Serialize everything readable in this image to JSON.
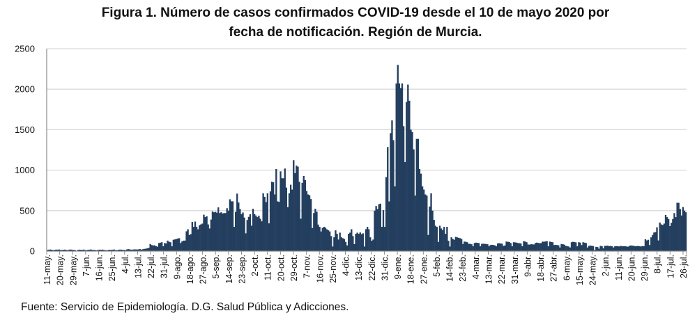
{
  "chart_data": {
    "type": "bar",
    "title_line1": "Figura 1. Número de casos confirmados COVID-19 desde el 10 de mayo 2020 por",
    "title_line2": "fecha de notificación. Región de Murcia.",
    "source": "Fuente: Servicio de Epidemiología. D.G. Salud Pública y Adicciones.",
    "xlabel": "",
    "ylabel": "",
    "ylim": [
      0,
      2500
    ],
    "yticks": [
      "0",
      "500",
      "1000",
      "1500",
      "2000",
      "2500"
    ],
    "grid": true,
    "bar_color": "#233e5e",
    "grid_color": "#d9d9d9",
    "x_start": "2020-05-10",
    "x_end": "2021-07-26",
    "xtick_interval_days": 9,
    "xtick_labels": [
      "11-may.",
      "20-may.",
      "29-may.",
      "7-jun.",
      "16-jun.",
      "25-jun.",
      "4-jul.",
      "13-jul.",
      "22-jul.",
      "31-jul.",
      "9-ago.",
      "18-ago.",
      "27-ago.",
      "5-sep.",
      "14-sep.",
      "23-sep.",
      "2-oct.",
      "11-oct.",
      "20-oct.",
      "29-oct.",
      "7-nov.",
      "16-nov.",
      "25-nov.",
      "4-dic.",
      "13-dic.",
      "22-dic.",
      "31-dic.",
      "9-ene.",
      "18-ene.",
      "27-ene.",
      "5-feb.",
      "14-feb.",
      "23-feb.",
      "4-mar.",
      "13-mar.",
      "22-mar.",
      "31-mar.",
      "9-abr.",
      "18-abr.",
      "27-abr.",
      "6-may.",
      "15-may.",
      "24-may.",
      "2-jun.",
      "11-jun.",
      "20-jun.",
      "29-jun.",
      "8-jul.",
      "17-jul.",
      "26-jul."
    ],
    "values": [
      15,
      18,
      20,
      17,
      12,
      16,
      19,
      18,
      20,
      16,
      14,
      17,
      19,
      15,
      12,
      18,
      20,
      17,
      16,
      14,
      5,
      15,
      18,
      17,
      16,
      19,
      14,
      12,
      17,
      18,
      20,
      16,
      15,
      14,
      11,
      16,
      18,
      17,
      19,
      15,
      13,
      10,
      15,
      17,
      16,
      18,
      20,
      14,
      12,
      17,
      19,
      18,
      16,
      15,
      14,
      22,
      25,
      20,
      18,
      19,
      22,
      21,
      20,
      22,
      25,
      18,
      24,
      28,
      30,
      35,
      40,
      88,
      75,
      70,
      72,
      60,
      55,
      100,
      105,
      110,
      60,
      100,
      95,
      130,
      115,
      110,
      60,
      140,
      145,
      150,
      155,
      160,
      100,
      120,
      130,
      130,
      245,
      270,
      200,
      210,
      360,
      300,
      365,
      300,
      270,
      320,
      330,
      340,
      450,
      420,
      430,
      330,
      280,
      390,
      490,
      480,
      485,
      475,
      540,
      470,
      480,
      465,
      470,
      470,
      530,
      500,
      640,
      615,
      615,
      300,
      485,
      710,
      600,
      520,
      457,
      477,
      415,
      220,
      385,
      423,
      457,
      314,
      523,
      457,
      440,
      420,
      437,
      400,
      368,
      714,
      671,
      606,
      714,
      343,
      737,
      857,
      850,
      700,
      1014,
      614,
      608,
      985,
      900,
      900,
      1020,
      785,
      543,
      714,
      820,
      760,
      1123,
      963,
      1057,
      1043,
      857,
      400,
      843,
      928,
      877,
      743,
      700,
      690,
      643,
      286,
      471,
      523,
      486,
      328,
      300,
      243,
      286,
      300,
      290,
      270,
      257,
      243,
      186,
      57,
      171,
      257,
      214,
      143,
      228,
      171,
      160,
      150,
      114,
      71,
      214,
      228,
      271,
      186,
      86,
      214,
      228,
      214,
      230,
      210,
      220,
      57,
      271,
      300,
      271,
      171,
      128,
      143,
      500,
      557,
      520,
      580,
      586,
      300,
      506,
      300,
      914,
      1286,
      614,
      1457,
      1614,
      1371,
      800,
      2071,
      2300,
      2071,
      2014,
      2071,
      1543,
      1100,
      1843,
      2057,
      1857,
      1500,
      1471,
      1257,
      686,
      1386,
      1386,
      1014,
      957,
      800,
      760,
      700,
      686,
      200,
      551,
      714,
      500,
      386,
      314,
      300,
      114,
      314,
      280,
      260,
      300,
      214,
      300,
      128,
      57,
      171,
      150,
      140,
      176,
      170,
      165,
      160,
      150,
      88,
      118,
      115,
      110,
      90,
      90,
      85,
      60,
      100,
      105,
      102,
      100,
      60,
      90,
      92,
      90,
      88,
      85,
      60,
      75,
      78,
      76,
      72,
      60,
      95,
      98,
      95,
      92,
      65,
      70,
      118,
      115,
      112,
      100,
      60,
      110,
      108,
      105,
      100,
      98,
      95,
      60,
      123,
      118,
      110,
      82,
      80,
      85,
      84,
      82,
      100,
      105,
      102,
      98,
      100,
      118,
      115,
      120,
      123,
      60,
      118,
      112,
      110,
      75,
      78,
      75,
      72,
      45,
      88,
      85,
      80,
      65,
      60,
      58,
      45,
      110,
      115,
      112,
      108,
      60,
      110,
      105,
      75,
      110,
      105,
      100,
      45,
      65,
      68,
      66,
      62,
      15,
      53,
      50,
      30,
      65,
      60,
      35,
      65,
      66,
      68,
      62,
      64,
      60,
      45,
      60,
      62,
      60,
      58,
      65,
      60,
      62,
      60,
      58,
      55,
      65,
      70,
      68,
      66,
      60,
      62,
      64,
      60,
      58,
      63,
      61,
      147,
      132,
      140,
      75,
      170,
      200,
      230,
      235,
      294,
      132,
      353,
      330,
      323,
      340,
      447,
      420,
      397,
      309,
      350,
      397,
      470,
      420,
      597,
      597,
      520,
      441,
      544,
      500,
      480
    ]
  }
}
